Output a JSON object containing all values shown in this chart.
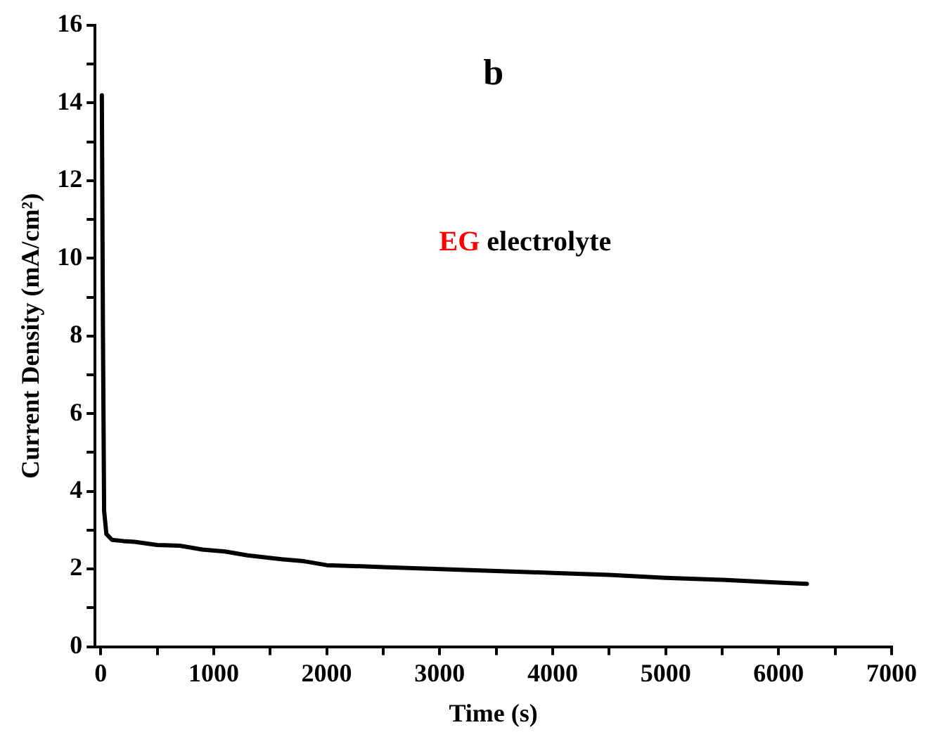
{
  "chart_data": {
    "type": "line",
    "xlabel": "Time (s)",
    "ylabel": "Current Density (mA/cm²)",
    "annotations": [
      "b",
      "EG electrolyte"
    ],
    "x": [
      10,
      20,
      30,
      50,
      100,
      200,
      300,
      500,
      700,
      900,
      1100,
      1300,
      1600,
      1800,
      2000,
      2500,
      3000,
      3500,
      4000,
      4500,
      5000,
      5500,
      6000,
      6250
    ],
    "series": [
      {
        "color": "#000000",
        "values": [
          14.2,
          8,
          3.5,
          2.9,
          2.75,
          2.72,
          2.7,
          2.62,
          2.6,
          2.5,
          2.45,
          2.35,
          2.25,
          2.2,
          2.1,
          2.05,
          2.0,
          1.95,
          1.9,
          1.85,
          1.77,
          1.72,
          1.65,
          1.62
        ]
      }
    ],
    "xlim": [
      -50,
      7000
    ],
    "xticks": [
      0,
      {
        "value": 500,
        "label": null
      },
      1000,
      {
        "value": 1500,
        "label": null
      },
      2000,
      {
        "value": 2500,
        "label": null
      },
      3000,
      {
        "value": 3500,
        "label": null
      },
      4000,
      {
        "value": 4500,
        "label": null
      },
      5000,
      {
        "value": 5500,
        "label": null
      },
      6000,
      {
        "value": 6500,
        "label": null
      },
      7000
    ],
    "ylim": [
      0,
      16
    ],
    "yticks": [
      0,
      {
        "value": 1,
        "label": null
      },
      2,
      {
        "value": 3,
        "label": null
      },
      4,
      {
        "value": 5,
        "label": null
      },
      6,
      {
        "value": 7,
        "label": null
      },
      8,
      {
        "value": 9,
        "label": null
      },
      10,
      {
        "value": 11,
        "label": null
      },
      12,
      {
        "value": 13,
        "label": null
      },
      14,
      {
        "value": 15,
        "label": null
      },
      16
    ],
    "grid": false,
    "legend": false,
    "marker": "none",
    "line_style": "solid"
  }
}
